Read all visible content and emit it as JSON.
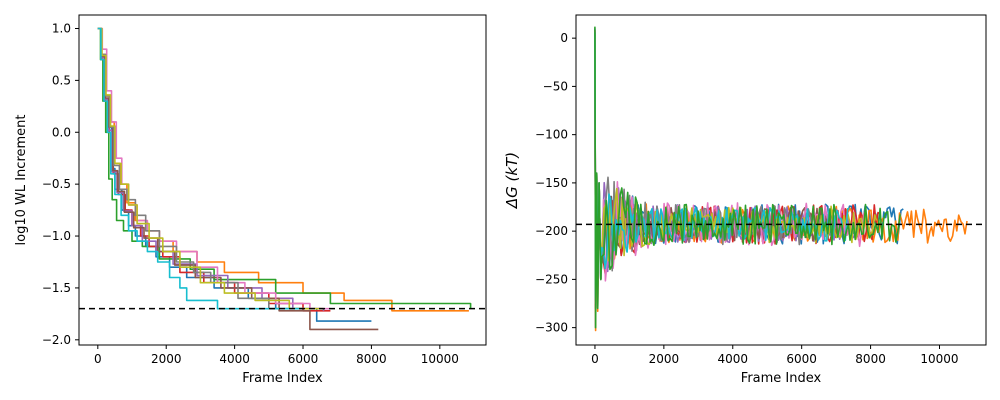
{
  "colors": [
    "#1f77b4",
    "#ff7f0e",
    "#2ca02c",
    "#d62728",
    "#9467bd",
    "#8c564b",
    "#e377c2",
    "#7f7f7f",
    "#bcbd22",
    "#17becf"
  ],
  "chart_data": [
    {
      "type": "line",
      "xlabel": "Frame Index",
      "ylabel": "log10 WL Increment",
      "xlim": [
        -550,
        11350
      ],
      "ylim": [
        -2.05,
        1.13
      ],
      "xticks": [
        0,
        2000,
        4000,
        6000,
        8000,
        10000
      ],
      "yticks": [
        -2.0,
        -1.5,
        -1.0,
        -0.5,
        0.0,
        0.5,
        1.0
      ],
      "ytick_labels": [
        "−2.0",
        "−1.5",
        "−1.0",
        "−0.5",
        "0.0",
        "0.5",
        "1.0"
      ],
      "grid": false,
      "reference_line": {
        "y": -1.7,
        "style": "dashed",
        "color": "#000000"
      },
      "series": [
        {
          "color_index": 0,
          "x": [
            0,
            100,
            200,
            300,
            400,
            500,
            700,
            900,
            1100,
            1400,
            1700,
            2100,
            2600,
            3400,
            4400,
            5200,
            6400,
            8000
          ],
          "y": [
            1.0,
            0.72,
            0.32,
            0.05,
            -0.35,
            -0.55,
            -0.75,
            -0.9,
            -1.0,
            -1.1,
            -1.2,
            -1.3,
            -1.4,
            -1.5,
            -1.6,
            -1.7,
            -1.82,
            -1.82
          ]
        },
        {
          "color_index": 1,
          "x": [
            0,
            120,
            220,
            340,
            480,
            650,
            850,
            1100,
            1400,
            1800,
            2200,
            2900,
            3700,
            4700,
            6000,
            7200,
            8600,
            10850
          ],
          "y": [
            1.0,
            0.75,
            0.35,
            0.1,
            -0.3,
            -0.5,
            -0.68,
            -0.85,
            -0.95,
            -1.05,
            -1.15,
            -1.25,
            -1.35,
            -1.45,
            -1.55,
            -1.62,
            -1.72,
            -1.72
          ]
        },
        {
          "color_index": 2,
          "x": [
            0,
            80,
            150,
            230,
            320,
            420,
            550,
            750,
            1000,
            1300,
            1800,
            2700,
            3400,
            5200,
            6800,
            10900
          ],
          "y": [
            1.0,
            0.7,
            0.3,
            0.0,
            -0.45,
            -0.65,
            -0.85,
            -0.95,
            -1.05,
            -1.1,
            -1.22,
            -1.32,
            -1.42,
            -1.55,
            -1.65,
            -1.7
          ]
        },
        {
          "color_index": 3,
          "x": [
            0,
            110,
            220,
            330,
            450,
            600,
            800,
            1000,
            1250,
            1500,
            1900,
            2400,
            3100,
            4000,
            5000,
            6000,
            6800
          ],
          "y": [
            1.0,
            0.7,
            0.3,
            0.0,
            -0.4,
            -0.6,
            -0.75,
            -0.9,
            -1.0,
            -1.1,
            -1.2,
            -1.35,
            -1.45,
            -1.55,
            -1.65,
            -1.72,
            -1.72
          ]
        },
        {
          "color_index": 4,
          "x": [
            0,
            100,
            200,
            310,
            420,
            560,
            760,
            1000,
            1300,
            1700,
            2200,
            2900,
            3800,
            4800,
            5700,
            6600
          ],
          "y": [
            1.0,
            0.72,
            0.32,
            0.02,
            -0.38,
            -0.58,
            -0.76,
            -0.9,
            -1.05,
            -1.15,
            -1.27,
            -1.38,
            -1.5,
            -1.6,
            -1.7,
            -1.72
          ]
        },
        {
          "color_index": 5,
          "x": [
            0,
            110,
            210,
            320,
            440,
            580,
            780,
            1050,
            1350,
            1750,
            2250,
            2850,
            3600,
            4500,
            5300,
            6200,
            8200
          ],
          "y": [
            1.0,
            0.73,
            0.33,
            0.05,
            -0.37,
            -0.57,
            -0.77,
            -0.92,
            -1.02,
            -1.15,
            -1.28,
            -1.4,
            -1.5,
            -1.6,
            -1.72,
            -1.9,
            -1.9
          ]
        },
        {
          "color_index": 6,
          "x": [
            0,
            130,
            260,
            400,
            540,
            700,
            900,
            1150,
            1450,
            1800,
            2300,
            2900,
            3500,
            4300,
            5200,
            6200,
            6800
          ],
          "y": [
            1.0,
            0.8,
            0.4,
            0.1,
            -0.25,
            -0.5,
            -0.7,
            -0.85,
            -0.95,
            -1.05,
            -1.15,
            -1.3,
            -1.45,
            -1.55,
            -1.65,
            -1.7,
            -1.7
          ]
        },
        {
          "color_index": 7,
          "x": [
            0,
            110,
            230,
            350,
            470,
            630,
            850,
            1100,
            1400,
            1800,
            2300,
            2800,
            3300,
            4100,
            5000,
            6000
          ],
          "y": [
            1.0,
            0.75,
            0.35,
            0.05,
            -0.32,
            -0.55,
            -0.65,
            -0.8,
            -0.95,
            -1.1,
            -1.25,
            -1.35,
            -1.45,
            -1.6,
            -1.7,
            -1.7
          ]
        },
        {
          "color_index": 8,
          "x": [
            0,
            120,
            240,
            370,
            500,
            680,
            900,
            1150,
            1500,
            1900,
            2400,
            3000,
            3700,
            4600,
            5600,
            6600
          ],
          "y": [
            1.0,
            0.74,
            0.36,
            0.06,
            -0.3,
            -0.5,
            -0.7,
            -0.88,
            -1.02,
            -1.15,
            -1.3,
            -1.45,
            -1.55,
            -1.62,
            -1.7,
            -1.7
          ]
        },
        {
          "color_index": 9,
          "x": [
            0,
            90,
            180,
            280,
            380,
            500,
            680,
            900,
            1150,
            1450,
            1750,
            2100,
            2400,
            2600,
            3500,
            5000,
            6000
          ],
          "y": [
            1.0,
            0.7,
            0.3,
            0.0,
            -0.4,
            -0.6,
            -0.8,
            -0.95,
            -1.05,
            -1.15,
            -1.25,
            -1.4,
            -1.5,
            -1.62,
            -1.7,
            -1.7,
            -1.7
          ]
        }
      ]
    },
    {
      "type": "line",
      "xlabel": "Frame Index",
      "ylabel": "ΔG (kT)",
      "xlim": [
        -550,
        11350
      ],
      "ylim": [
        -318,
        24
      ],
      "xticks": [
        0,
        2000,
        4000,
        6000,
        8000,
        10000
      ],
      "yticks": [
        0,
        -50,
        -100,
        -150,
        -200,
        -250,
        -300
      ],
      "ytick_labels": [
        "0",
        "−50",
        "−100",
        "−150",
        "−200",
        "−250",
        "−300"
      ],
      "grid": false,
      "reference_line": {
        "y": -193,
        "style": "dashed",
        "color": "#000000"
      },
      "series": [
        {
          "color_index": 0,
          "x_end": 9000,
          "spike_min": -300,
          "spike_max": 10,
          "noise": 12,
          "seed": 11
        },
        {
          "color_index": 1,
          "x_end": 10800,
          "spike_min": -303,
          "spike_max": 5,
          "noise": 11,
          "seed": 23
        },
        {
          "color_index": 3,
          "x_end": 8300,
          "spike_min": -280,
          "spike_max": 8,
          "noise": 12,
          "seed": 37
        },
        {
          "color_index": 4,
          "x_end": 7600,
          "spike_min": -270,
          "spike_max": 6,
          "noise": 11,
          "seed": 41
        },
        {
          "color_index": 5,
          "x_end": 6900,
          "spike_min": -265,
          "spike_max": 6,
          "noise": 10,
          "seed": 53
        },
        {
          "color_index": 6,
          "x_end": 7900,
          "spike_min": -275,
          "spike_max": 7,
          "noise": 13,
          "seed": 67
        },
        {
          "color_index": 7,
          "x_end": 6600,
          "spike_min": -272,
          "spike_max": 6,
          "noise": 12,
          "seed": 71
        },
        {
          "color_index": 8,
          "x_end": 8200,
          "spike_min": -260,
          "spike_max": 6,
          "noise": 11,
          "seed": 83
        },
        {
          "color_index": 9,
          "x_end": 7400,
          "spike_min": -268,
          "spike_max": 6,
          "noise": 10,
          "seed": 97
        },
        {
          "color_index": 2,
          "x_end": 8900,
          "spike_min": -300,
          "spike_max": 12,
          "noise": 12,
          "seed": 5
        }
      ]
    }
  ]
}
